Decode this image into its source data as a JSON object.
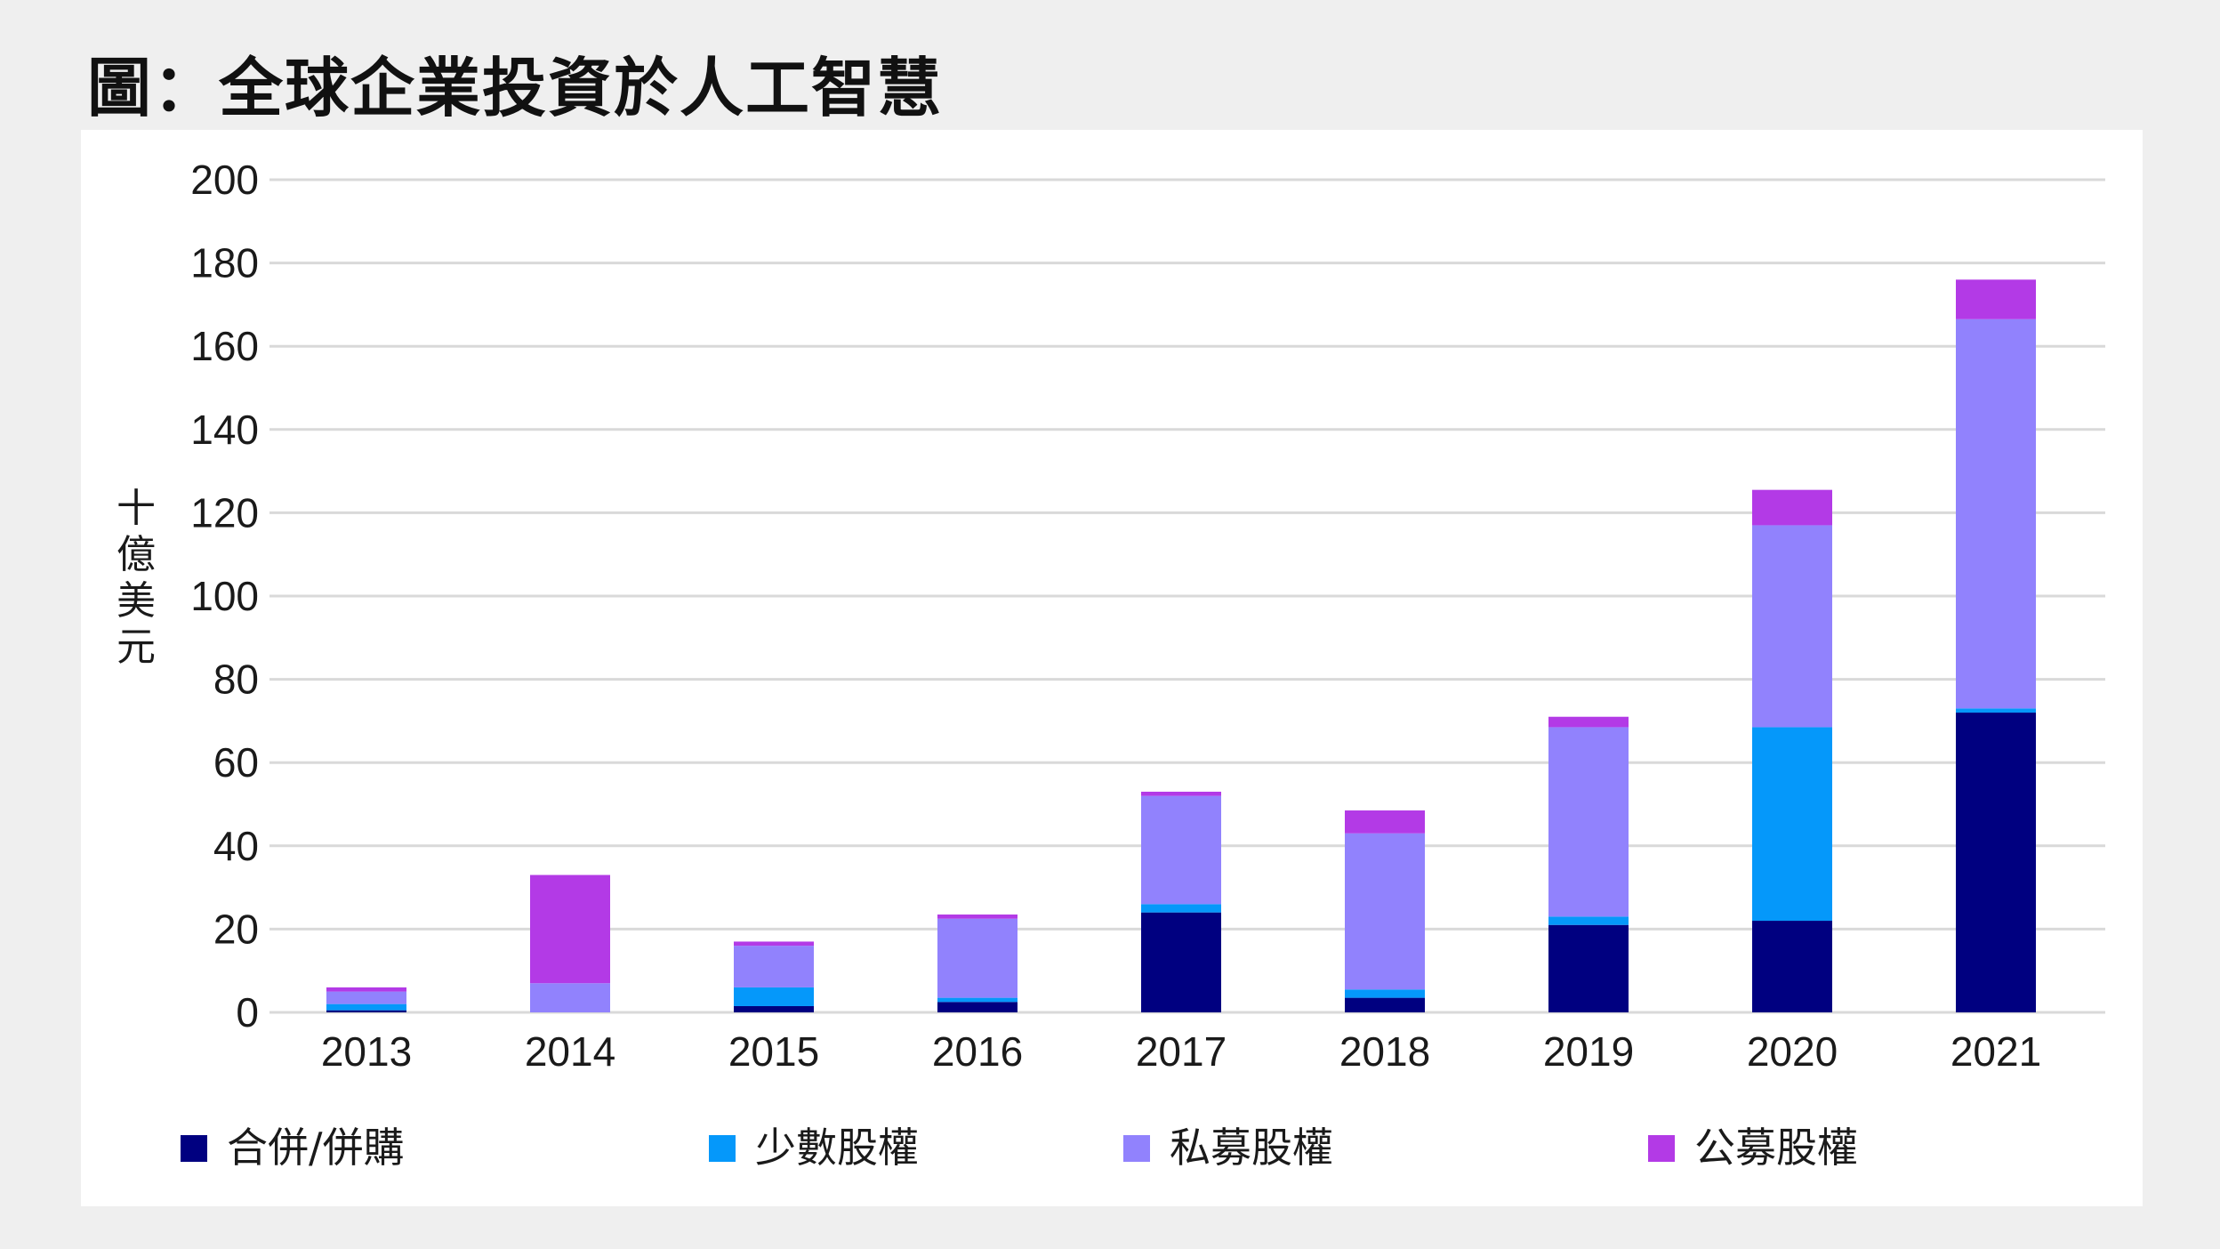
{
  "title": "圖：全球企業投資於人工智慧",
  "chart_data": {
    "type": "bar",
    "stacked": true,
    "categories": [
      "2013",
      "2014",
      "2015",
      "2016",
      "2017",
      "2018",
      "2019",
      "2020",
      "2021"
    ],
    "series": [
      {
        "name": "合併/併購",
        "color": "#000080",
        "values": [
          0.5,
          0,
          1.5,
          2.5,
          24,
          3.5,
          21,
          22,
          72
        ]
      },
      {
        "name": "少數股權",
        "color": "#0598fa",
        "values": [
          1.5,
          0,
          4.5,
          1,
          2,
          2,
          2,
          46.5,
          1
        ]
      },
      {
        "name": "私募股權",
        "color": "#9182fd",
        "values": [
          3,
          7,
          10,
          19,
          26,
          37.5,
          45.5,
          48.5,
          93.5
        ]
      },
      {
        "name": "公募股權",
        "color": "#b33ae6",
        "values": [
          1,
          26,
          1,
          1,
          1,
          5.5,
          2.5,
          8.5,
          9.5
        ]
      }
    ],
    "ylabel": "十億美元",
    "ylim": [
      0,
      200
    ],
    "yticks": [
      0,
      20,
      40,
      60,
      80,
      100,
      120,
      140,
      160,
      180,
      200
    ],
    "grid": true,
    "legend_position": "bottom"
  }
}
